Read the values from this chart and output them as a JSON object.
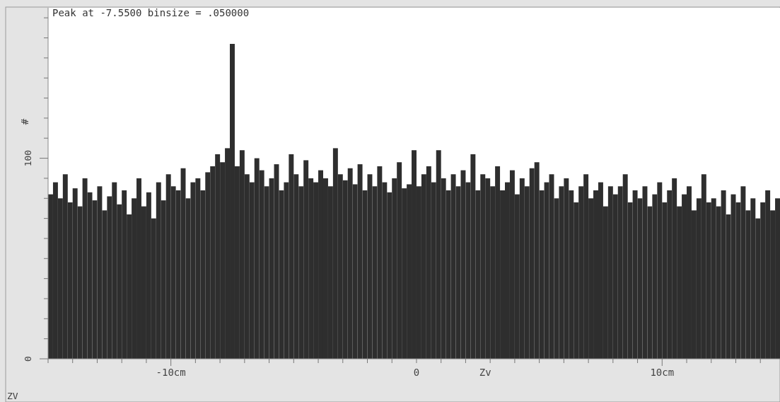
{
  "chart_data": {
    "type": "histogram",
    "title": "Peak at -7.5500 binsize = .050000",
    "xlabel": "Zv",
    "ylabel": "#",
    "annotations": [
      "ZV"
    ],
    "bins": [
      -15,
      -14.8,
      -14.6,
      -14.4,
      -14.2,
      -14,
      -13.8,
      -13.6,
      -13.4,
      -13.2,
      -13,
      -12.8,
      -12.6,
      -12.4,
      -12.2,
      -12,
      -11.8,
      -11.6,
      -11.4,
      -11.2,
      -11,
      -10.8,
      -10.6,
      -10.4,
      -10.2,
      -10,
      -9.8,
      -9.6,
      -9.4,
      -9.2,
      -9,
      -8.8,
      -8.6,
      -8.4,
      -8.2,
      -8,
      -7.8,
      -7.6,
      -7.4,
      -7.2,
      -7,
      -6.8,
      -6.6,
      -6.4,
      -6.2,
      -6,
      -5.8,
      -5.6,
      -5.4,
      -5.2,
      -5,
      -4.8,
      -4.6,
      -4.4,
      -4.2,
      -4,
      -3.8,
      -3.6,
      -3.4,
      -3.2,
      -3,
      -2.8,
      -2.6,
      -2.4,
      -2.2,
      -2,
      -1.8,
      -1.6,
      -1.4,
      -1.2,
      -1,
      -0.8,
      -0.6,
      -0.4,
      -0.2,
      0,
      0.2,
      0.4,
      0.6,
      0.8,
      1,
      1.2,
      1.4,
      1.6,
      1.8,
      2,
      2.2,
      2.4,
      2.6,
      2.8,
      3,
      3.2,
      3.4,
      3.6,
      3.8,
      4,
      4.2,
      4.4,
      4.6,
      4.8,
      5,
      5.2,
      5.4,
      5.6,
      5.8,
      6,
      6.2,
      6.4,
      6.6,
      6.8,
      7,
      7.2,
      7.4,
      7.6,
      7.8,
      8,
      8.2,
      8.4,
      8.6,
      8.8,
      9,
      9.2,
      9.4,
      9.6,
      9.8,
      10,
      10.2,
      10.4,
      10.6,
      10.8,
      11,
      11.2,
      11.4,
      11.6,
      11.8,
      12,
      12.2,
      12.4,
      12.6,
      12.8,
      13,
      13.2,
      13.4,
      13.6,
      13.8,
      14,
      14.2,
      14.4,
      14.6,
      14.8
    ],
    "values": [
      82,
      88,
      80,
      92,
      78,
      85,
      76,
      90,
      83,
      79,
      86,
      74,
      81,
      88,
      77,
      84,
      72,
      80,
      90,
      76,
      83,
      70,
      88,
      79,
      92,
      86,
      84,
      95,
      80,
      88,
      90,
      84,
      93,
      96,
      102,
      98,
      105,
      157,
      96,
      104,
      92,
      88,
      100,
      94,
      86,
      90,
      97,
      84,
      88,
      102,
      92,
      86,
      99,
      90,
      88,
      94,
      90,
      86,
      105,
      92,
      89,
      95,
      87,
      97,
      84,
      92,
      86,
      96,
      88,
      83,
      90,
      98,
      85,
      87,
      104,
      86,
      92,
      96,
      88,
      104,
      90,
      84,
      92,
      86,
      94,
      88,
      102,
      84,
      92,
      90,
      86,
      96,
      84,
      88,
      94,
      82,
      90,
      86,
      95,
      98,
      84,
      88,
      92,
      80,
      86,
      90,
      84,
      78,
      86,
      92,
      80,
      84,
      88,
      76,
      86,
      82,
      86,
      92,
      78,
      84,
      80,
      86,
      76,
      82,
      88,
      78,
      84,
      90,
      76,
      82,
      86,
      74,
      80,
      92,
      78,
      80,
      76,
      84,
      72,
      82,
      78,
      86,
      74,
      80,
      70,
      78,
      84,
      74,
      80
    ],
    "color": "#2e2e2e",
    "xlim": [
      -15,
      14.8
    ],
    "xticks": [
      {
        "value": -15,
        "label": null
      },
      {
        "value": -14,
        "label": null
      },
      {
        "value": -13,
        "label": null
      },
      {
        "value": -12,
        "label": null
      },
      {
        "value": -11,
        "label": null
      },
      {
        "value": -10,
        "label": "-10cm"
      },
      {
        "value": -9,
        "label": null
      },
      {
        "value": -8,
        "label": null
      },
      {
        "value": -7,
        "label": null
      },
      {
        "value": -6,
        "label": null
      },
      {
        "value": -5,
        "label": null
      },
      {
        "value": -4,
        "label": null
      },
      {
        "value": -3,
        "label": null
      },
      {
        "value": -2,
        "label": null
      },
      {
        "value": -1,
        "label": null
      },
      0,
      {
        "value": 1,
        "label": null
      },
      {
        "value": 2,
        "label": null
      },
      {
        "value": 3,
        "label": null
      },
      {
        "value": 4,
        "label": null
      },
      {
        "value": 5,
        "label": null
      },
      {
        "value": 6,
        "label": null
      },
      {
        "value": 7,
        "label": null
      },
      {
        "value": 8,
        "label": null
      },
      {
        "value": 9,
        "label": null
      },
      {
        "value": 10,
        "label": "10cm"
      },
      {
        "value": 11,
        "label": null
      },
      {
        "value": 12,
        "label": null
      },
      {
        "value": 13,
        "label": null
      },
      {
        "value": 14,
        "label": null
      }
    ],
    "ylim": [
      0,
      175
    ],
    "yticks": [
      0,
      {
        "value": 10,
        "label": null
      },
      {
        "value": 20,
        "label": null
      },
      {
        "value": 30,
        "label": null
      },
      {
        "value": 40,
        "label": null
      },
      {
        "value": 50,
        "label": null
      },
      {
        "value": 60,
        "label": null
      },
      {
        "value": 70,
        "label": null
      },
      {
        "value": 80,
        "label": null
      },
      {
        "value": 90,
        "label": null
      },
      100,
      {
        "value": 110,
        "label": null
      },
      {
        "value": 120,
        "label": null
      },
      {
        "value": 130,
        "label": null
      },
      {
        "value": 140,
        "label": null
      },
      {
        "value": 150,
        "label": null
      },
      {
        "value": 160,
        "label": null
      },
      {
        "value": 170,
        "label": null
      }
    ]
  }
}
